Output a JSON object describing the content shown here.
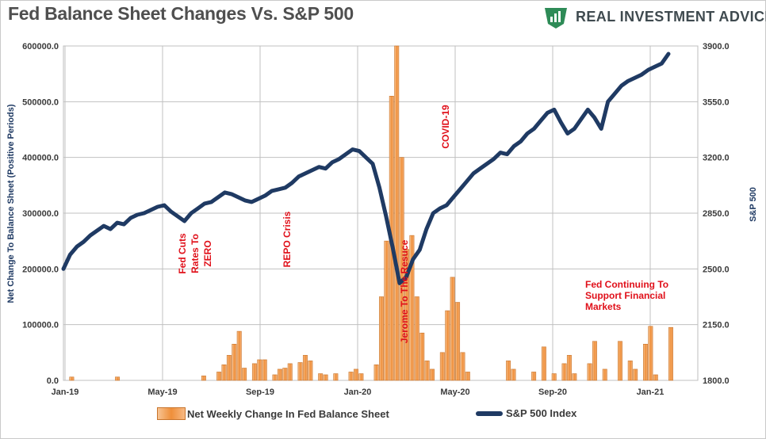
{
  "title": "Fed Balance Sheet Changes Vs. S&P 500",
  "brand": {
    "name": "REAL INVESTMENT ADVICE",
    "logo_color": "#2e8b57"
  },
  "colors": {
    "bar": "#ef8f3a",
    "bar_edge": "#c8742b",
    "line": "#1f3a63",
    "annotation": "#e0101a",
    "grid": "#c0c0c0"
  },
  "chart_data": {
    "type": "bar",
    "ylabel": "Net Change To Balance Sheet (Positive Periods)",
    "y2label": "S&P 500",
    "ylim": [
      0,
      600000
    ],
    "y2lim": [
      1800,
      3900
    ],
    "yticks": [
      "0.0",
      "100000.0",
      "200000.0",
      "300000.0",
      "400000.0",
      "500000.0",
      "600000.0"
    ],
    "y2ticks": [
      "1800.0",
      "2150.0",
      "2500.0",
      "2850.0",
      "3200.0",
      "3550.0",
      "3900.0"
    ],
    "xticks": [
      "Jan-19",
      "May-19",
      "Sep-19",
      "Jan-20",
      "May-20",
      "Sep-20",
      "Jan-21"
    ],
    "grid": true,
    "legend_position": "bottom",
    "series": [
      {
        "name": "Net Weekly Change In Fed Balance Sheet",
        "type": "bar",
        "values": [
          0,
          0,
          0,
          0,
          0,
          0,
          0,
          0,
          0,
          0,
          0,
          0,
          0,
          6000,
          0,
          0,
          0,
          0,
          0,
          0,
          6000,
          0,
          0,
          0,
          0,
          0,
          0,
          0,
          0,
          0,
          0,
          0,
          0,
          0,
          0,
          0,
          0,
          0,
          0,
          0,
          0,
          0,
          0,
          0,
          0,
          0,
          0,
          0,
          0,
          0,
          0,
          0,
          0,
          0,
          0,
          0,
          6000,
          0,
          0,
          0,
          0,
          0,
          0,
          0,
          0,
          0,
          0,
          0,
          0,
          0,
          0,
          0,
          0,
          0,
          0,
          0,
          0,
          0,
          0,
          0,
          0,
          0,
          0,
          0,
          8000,
          0,
          0,
          0,
          0,
          0,
          0,
          0,
          0,
          15000,
          28000,
          45000,
          65000,
          88000,
          22000,
          0,
          30000,
          37000,
          37000,
          0,
          10000,
          20000,
          22000,
          30000,
          0,
          32000,
          45000,
          35000,
          0,
          12000,
          10000,
          0,
          12000,
          0,
          0,
          15000,
          20000,
          12000,
          0,
          0,
          0,
          28000,
          150000,
          250000,
          510000,
          600000,
          400000,
          235000,
          260000,
          150000,
          85000,
          35000,
          20000,
          0,
          50000,
          125000,
          185000,
          140000,
          50000,
          15000,
          0,
          0,
          0,
          0,
          0,
          0,
          0,
          0,
          0,
          0,
          0,
          0,
          0,
          35000,
          20000,
          0,
          0,
          0,
          15000,
          0,
          0,
          0,
          0,
          0,
          0,
          0,
          60000,
          0,
          12000,
          0,
          30000,
          45000,
          12000,
          0,
          0,
          0,
          0,
          30000,
          70000,
          0,
          20000,
          0,
          0,
          0,
          0,
          70000,
          0,
          35000,
          20000,
          0,
          0,
          0,
          0,
          65000,
          97000,
          10000,
          0,
          0,
          0,
          0,
          0,
          0,
          95000
        ],
        "values_by_week": [
          0,
          6000,
          0,
          0,
          0,
          0,
          0,
          0,
          0,
          0,
          6000,
          0,
          0,
          0,
          0,
          0,
          0,
          0,
          0,
          0,
          0,
          0,
          0,
          0,
          0,
          0,
          0,
          8000,
          0,
          0,
          15000,
          28000,
          45000,
          65000,
          88000,
          22000,
          0,
          30000,
          37000,
          37000,
          0,
          10000,
          20000,
          22000,
          30000,
          0,
          32000,
          45000,
          35000,
          0,
          12000,
          10000,
          0,
          12000,
          0,
          0,
          15000,
          20000,
          12000,
          0,
          0,
          28000,
          150000,
          250000,
          510000,
          600000,
          400000,
          235000,
          260000,
          150000,
          85000,
          35000,
          20000,
          0,
          50000,
          125000,
          185000,
          140000,
          50000,
          15000,
          0,
          0,
          0,
          0,
          0,
          0,
          0,
          35000,
          20000,
          0,
          0,
          0,
          15000,
          0,
          60000,
          0,
          12000,
          0,
          30000,
          45000,
          12000,
          0,
          0,
          30000,
          70000,
          0,
          20000,
          0,
          0,
          70000,
          0,
          35000,
          20000,
          0,
          65000,
          97000,
          10000,
          0,
          0,
          95000
        ]
      },
      {
        "name": "S&P 500 Index",
        "type": "line",
        "axis": "right",
        "values": [
          2500,
          2590,
          2640,
          2670,
          2710,
          2740,
          2770,
          2750,
          2790,
          2780,
          2820,
          2840,
          2850,
          2870,
          2890,
          2900,
          2860,
          2830,
          2800,
          2850,
          2880,
          2910,
          2920,
          2950,
          2980,
          2970,
          2950,
          2930,
          2920,
          2940,
          2960,
          2990,
          3000,
          3010,
          3040,
          3080,
          3100,
          3120,
          3140,
          3130,
          3170,
          3190,
          3220,
          3250,
          3240,
          3200,
          3160,
          3010,
          2830,
          2630,
          2410,
          2450,
          2560,
          2620,
          2750,
          2850,
          2880,
          2900,
          2950,
          3000,
          3050,
          3100,
          3130,
          3160,
          3190,
          3230,
          3220,
          3270,
          3300,
          3350,
          3380,
          3430,
          3480,
          3500,
          3420,
          3350,
          3380,
          3440,
          3500,
          3450,
          3380,
          3550,
          3600,
          3650,
          3680,
          3700,
          3720,
          3750,
          3770,
          3790,
          3850
        ]
      }
    ],
    "annotations": [
      {
        "text": [
          "Fed Cuts",
          "Rates To",
          "ZERO"
        ]
      },
      {
        "text": [
          "REPO Crisis"
        ]
      },
      {
        "text": [
          "Jerome To The Resuce"
        ]
      },
      {
        "text": [
          "COVID-19"
        ]
      },
      {
        "text": [
          "Fed Continuing To",
          "Support Financial",
          "Markets"
        ]
      }
    ]
  },
  "legend": {
    "bars_label": "Net Weekly Change In Fed Balance Sheet",
    "line_label": "S&P 500 Index"
  }
}
